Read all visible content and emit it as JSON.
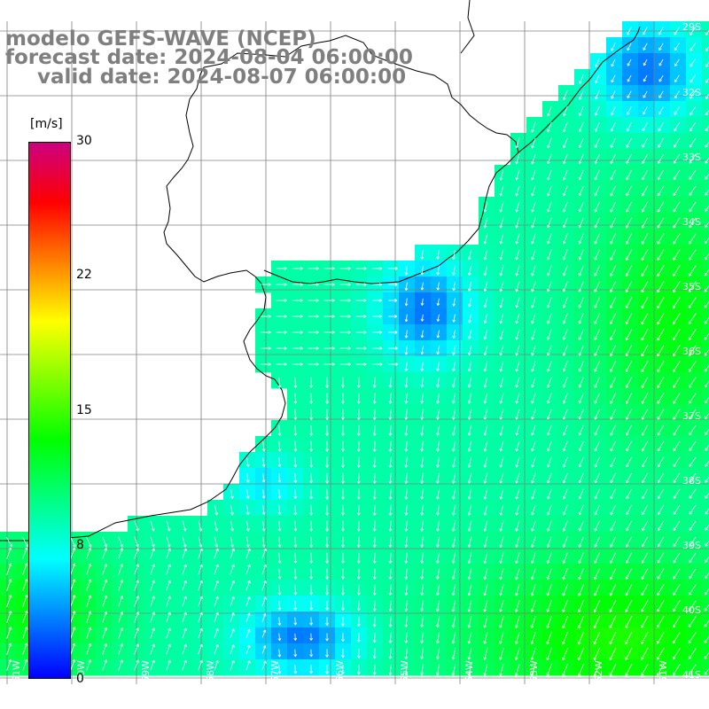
{
  "header": {
    "model": "modelo GEFS-WAVE (NCEP)",
    "forecast": "forecast date: 2024-08-04 06:00:00",
    "valid": "valid date: 2024-08-07 06:00:00"
  },
  "colorbar": {
    "unit": "[m/s]",
    "ticks": [
      "30",
      "22",
      "15",
      "8",
      "0"
    ],
    "range": [
      0,
      30
    ],
    "tick_values": [
      30,
      22,
      15,
      8,
      0
    ],
    "colors": [
      "#0000ff",
      "#0080ff",
      "#00ffff",
      "#00ff80",
      "#00ff00",
      "#80ff00",
      "#ffff00",
      "#ff8000",
      "#ff0000",
      "#cc0080"
    ]
  },
  "lat_labels": [
    "29S",
    "32S",
    "33S",
    "34S",
    "35S",
    "36S",
    "37S",
    "38S",
    "39S",
    "40S",
    "41S"
  ],
  "lon_labels": [
    "61W",
    "60W",
    "59W",
    "58W",
    "57W",
    "56W",
    "55W",
    "54W",
    "53W",
    "52W",
    "51W"
  ],
  "colors": {
    "land": "#ffffff",
    "coast": "#000000",
    "grid": "#808080",
    "arrows": "#ffffff",
    "title": "#7f7f7f"
  }
}
